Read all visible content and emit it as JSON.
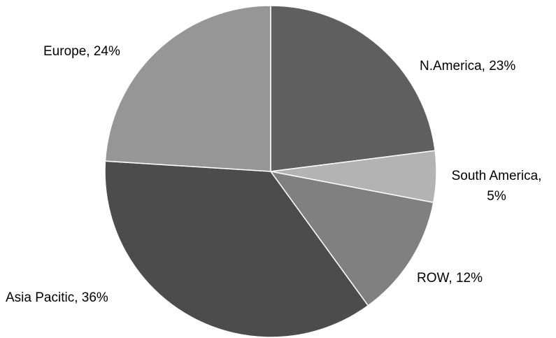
{
  "chart_data": {
    "type": "pie",
    "slices": [
      {
        "label": "N.America",
        "value": 23,
        "display": "N.America, 23%",
        "color": "#5f5f5f"
      },
      {
        "label": "South America",
        "value": 5,
        "display": "South America, 5%",
        "color": "#b3b3b3"
      },
      {
        "label": "ROW",
        "value": 12,
        "display": "ROW, 12%",
        "color": "#808080"
      },
      {
        "label": "Asia Pacitic",
        "value": 36,
        "display": "Asia Pacitic, 36%",
        "color": "#4c4c4c"
      },
      {
        "label": "Europe",
        "value": 24,
        "display": "Europe, 24%",
        "color": "#969696"
      }
    ],
    "start_angle": "12 o'clock",
    "direction": "clockwise",
    "slice_border_color": "#ffffff"
  }
}
